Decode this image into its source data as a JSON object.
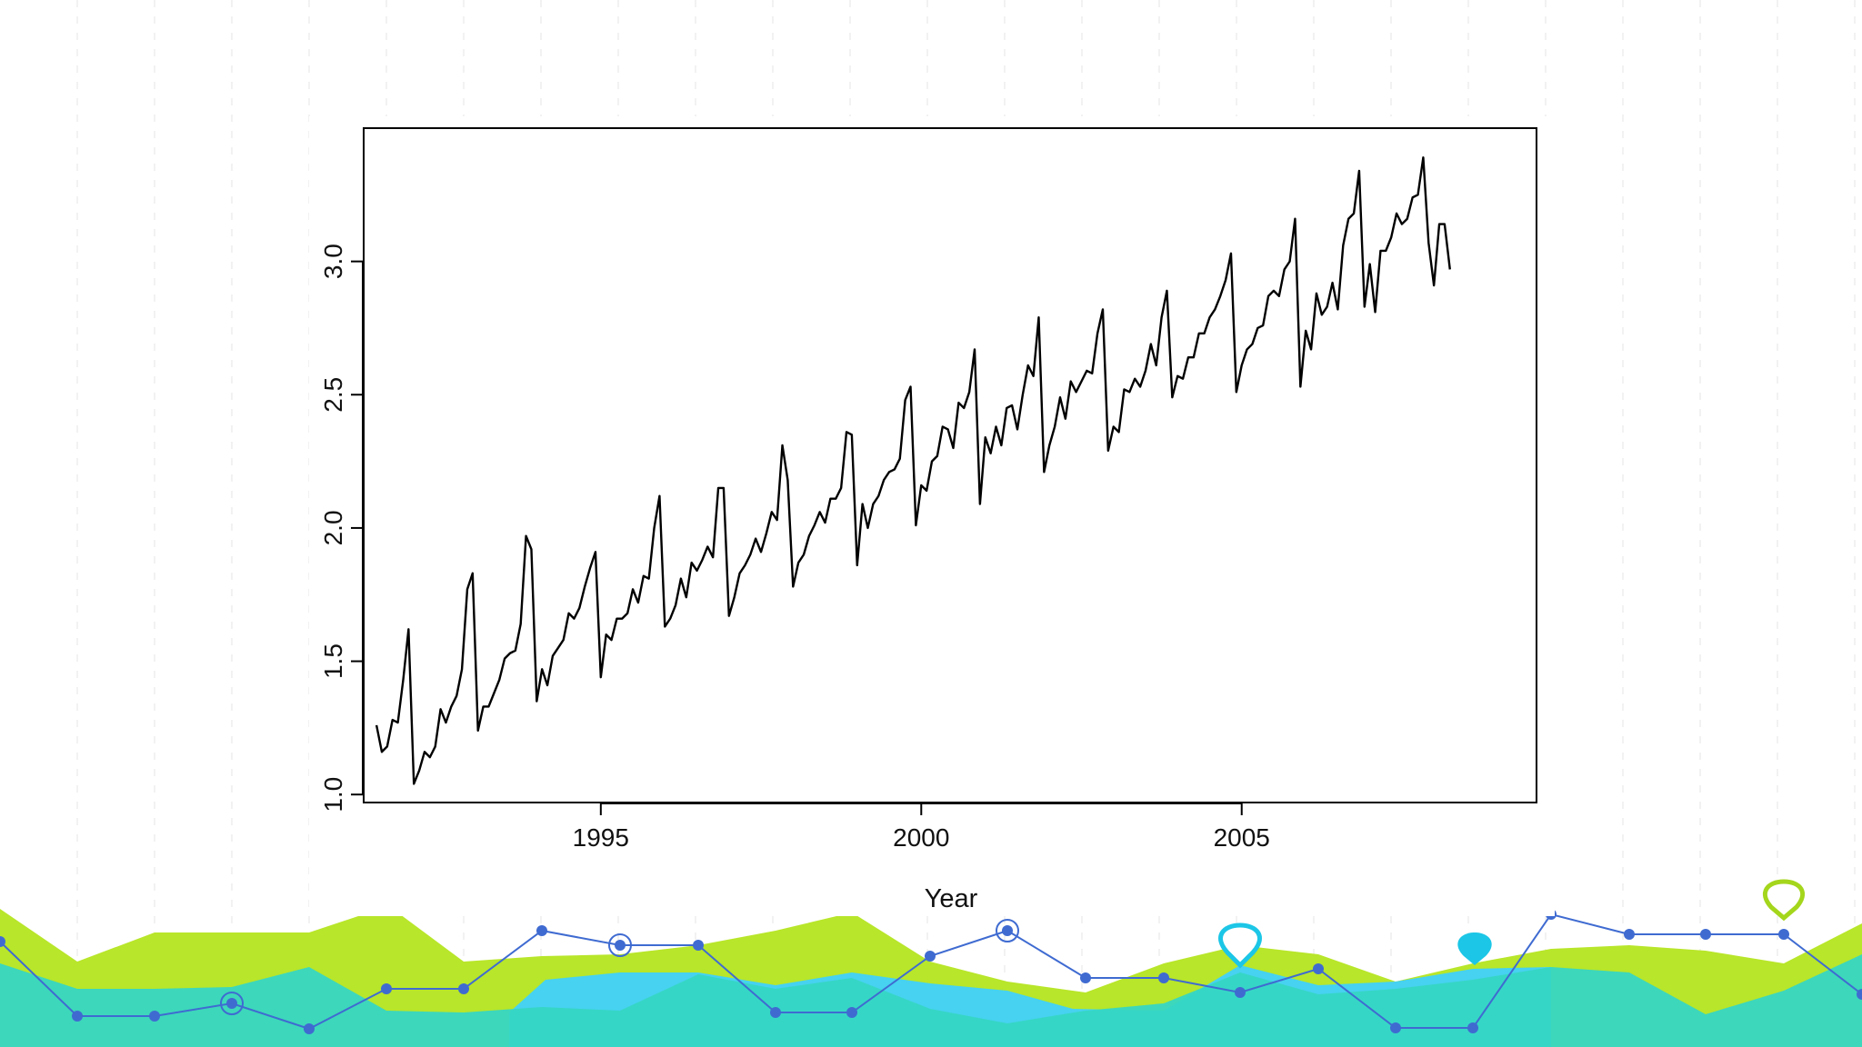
{
  "chart_data": {
    "type": "line",
    "xlabel": "Year",
    "ylabel": "",
    "xlim": [
      1991.3,
      2009.6
    ],
    "ylim": [
      0.97,
      3.5
    ],
    "x_ticks": [
      1995,
      2000,
      2005
    ],
    "x_tick_labels": [
      "1995",
      "2000",
      "2005"
    ],
    "y_ticks": [
      1.0,
      1.5,
      2.0,
      2.5,
      3.0
    ],
    "y_tick_labels": [
      "1.0",
      "1.5",
      "2.0",
      "2.5",
      "3.0"
    ],
    "grid": false,
    "series": [
      {
        "x_start": 1991.5,
        "x_step": 0.08333,
        "values": [
          1.26,
          1.16,
          1.18,
          1.28,
          1.27,
          1.43,
          1.62,
          1.04,
          1.09,
          1.16,
          1.14,
          1.18,
          1.32,
          1.27,
          1.33,
          1.37,
          1.47,
          1.77,
          1.83,
          1.24,
          1.33,
          1.33,
          1.38,
          1.43,
          1.51,
          1.53,
          1.54,
          1.64,
          1.97,
          1.92,
          1.35,
          1.47,
          1.41,
          1.52,
          1.55,
          1.58,
          1.68,
          1.66,
          1.7,
          1.78,
          1.85,
          1.91,
          1.44,
          1.6,
          1.58,
          1.66,
          1.66,
          1.68,
          1.77,
          1.72,
          1.82,
          1.81,
          2.0,
          2.12,
          1.63,
          1.66,
          1.71,
          1.81,
          1.74,
          1.87,
          1.84,
          1.88,
          1.93,
          1.89,
          2.15,
          2.15,
          1.67,
          1.74,
          1.83,
          1.86,
          1.9,
          1.96,
          1.91,
          1.98,
          2.06,
          2.03,
          2.31,
          2.18,
          1.78,
          1.87,
          1.9,
          1.97,
          2.01,
          2.06,
          2.02,
          2.11,
          2.11,
          2.15,
          2.36,
          2.35,
          1.86,
          2.09,
          2.0,
          2.09,
          2.12,
          2.18,
          2.21,
          2.22,
          2.26,
          2.48,
          2.53,
          2.01,
          2.16,
          2.14,
          2.25,
          2.27,
          2.38,
          2.37,
          2.3,
          2.47,
          2.45,
          2.51,
          2.67,
          2.09,
          2.34,
          2.28,
          2.38,
          2.31,
          2.45,
          2.46,
          2.37,
          2.5,
          2.61,
          2.57,
          2.79,
          2.21,
          2.31,
          2.38,
          2.49,
          2.41,
          2.55,
          2.51,
          2.55,
          2.59,
          2.58,
          2.73,
          2.82,
          2.29,
          2.38,
          2.36,
          2.52,
          2.51,
          2.56,
          2.53,
          2.59,
          2.69,
          2.61,
          2.79,
          2.89,
          2.49,
          2.57,
          2.56,
          2.64,
          2.64,
          2.73,
          2.73,
          2.79,
          2.82,
          2.87,
          2.93,
          3.03,
          2.51,
          2.61,
          2.67,
          2.69,
          2.75,
          2.76,
          2.87,
          2.89,
          2.87,
          2.97,
          3.0,
          3.16,
          2.53,
          2.74,
          2.67,
          2.88,
          2.8,
          2.83,
          2.92,
          2.82,
          3.06,
          3.16,
          3.18,
          3.34,
          2.83,
          2.99,
          2.81,
          3.04,
          3.04,
          3.09,
          3.18,
          3.14,
          3.16,
          3.24,
          3.25,
          3.39,
          3.07,
          2.91,
          3.14,
          3.14,
          2.97
        ]
      }
    ]
  },
  "background": {
    "lime": "#b8e62a",
    "teal": "#36d6c3",
    "cyan": "#46d2f0",
    "line": "#3f6bd1",
    "marker_cyan": "#1cc6e6",
    "marker_lime": "#a4d61c",
    "gridline": "#e6e6e6",
    "line_points": [
      [
        0,
        1036
      ],
      [
        85,
        1118
      ],
      [
        170,
        1118
      ],
      [
        255,
        1104
      ],
      [
        340,
        1132
      ],
      [
        425,
        1088
      ],
      [
        510,
        1088
      ],
      [
        596,
        1024
      ],
      [
        682,
        1040
      ],
      [
        768,
        1040
      ],
      [
        853,
        1114
      ],
      [
        937,
        1114
      ],
      [
        1023,
        1052
      ],
      [
        1108,
        1024
      ],
      [
        1194,
        1076
      ],
      [
        1280,
        1076
      ],
      [
        1364,
        1092
      ],
      [
        1450,
        1066
      ],
      [
        1535,
        1131
      ],
      [
        1620,
        1131
      ],
      [
        1706,
        1006
      ],
      [
        1792,
        1028
      ],
      [
        1876,
        1028
      ],
      [
        1962,
        1028
      ],
      [
        2048,
        1094
      ]
    ],
    "ring_points": [
      [
        255,
        1104
      ],
      [
        682,
        1040
      ],
      [
        1108,
        1024
      ]
    ]
  }
}
